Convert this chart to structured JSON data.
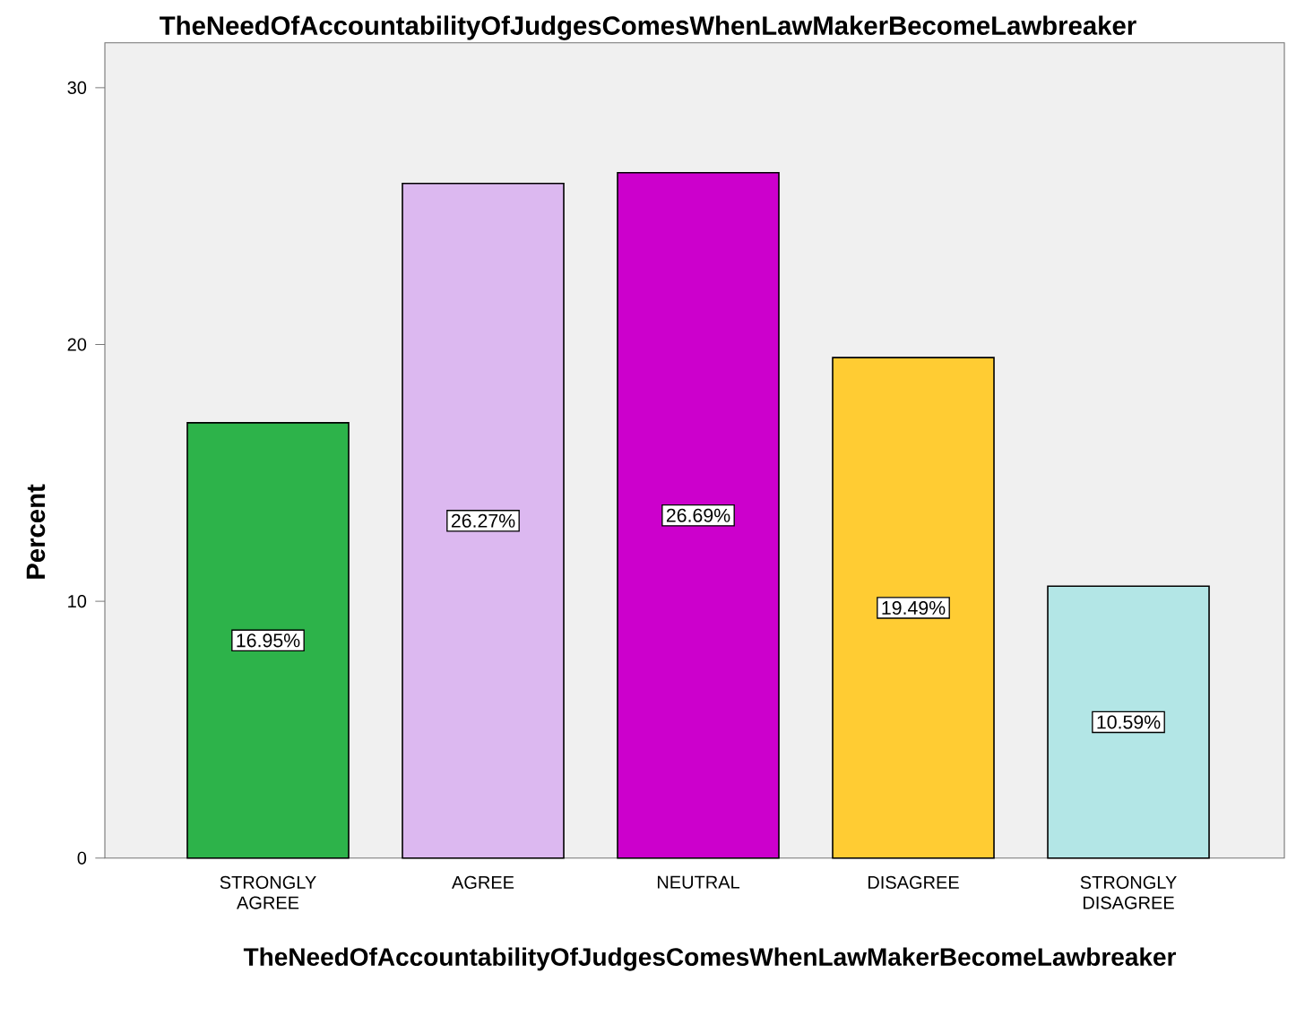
{
  "chart_data": {
    "type": "bar",
    "title": "TheNeedOfAccountabilityOfJudgesComesWhenLawMakerBecomeLawbreaker",
    "xlabel": "TheNeedOfAccountabilityOfJudgesComesWhenLawMakerBecomeLawbreaker",
    "ylabel": "Percent",
    "categories": [
      "STRONGLY AGREE",
      "AGREE",
      "NEUTRAL",
      "DISAGREE",
      "STRONGLY DISAGREE"
    ],
    "values": [
      16.95,
      26.27,
      26.69,
      19.49,
      10.59
    ],
    "value_labels": [
      "16.95%",
      "26.27%",
      "26.69%",
      "19.49%",
      "10.59%"
    ],
    "colors": [
      "#2db34a",
      "#dcb8f0",
      "#cc00cc",
      "#ffcc33",
      "#b3e6e6"
    ],
    "ylim": [
      0,
      31.75
    ],
    "yticks": [
      0,
      10,
      20,
      30
    ],
    "grid": false
  }
}
